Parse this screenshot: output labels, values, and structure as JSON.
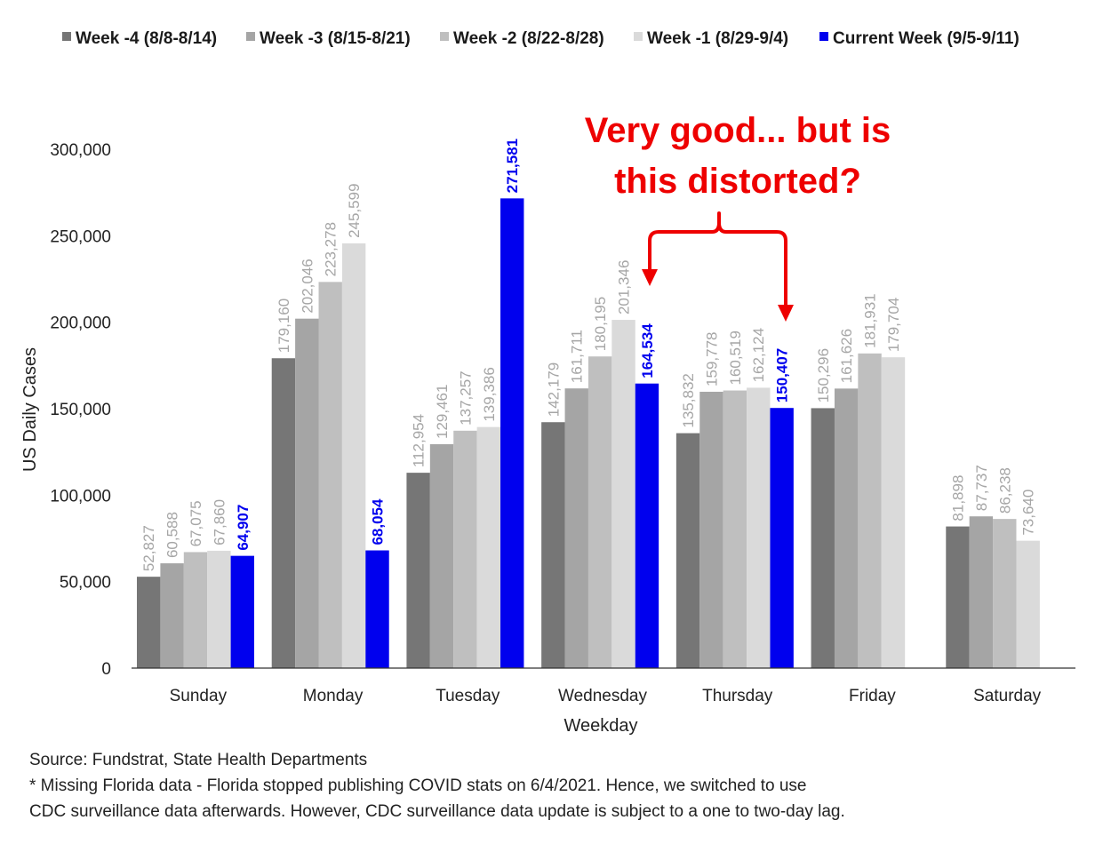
{
  "chart_data": {
    "type": "bar",
    "xlabel": "Weekday",
    "ylabel": "US Daily Cases",
    "ylim": [
      0,
      300000
    ],
    "yticks": [
      0,
      50000,
      100000,
      150000,
      200000,
      250000,
      300000
    ],
    "ytick_labels": [
      "0",
      "50,000",
      "100,000",
      "150,000",
      "200,000",
      "250,000",
      "300,000"
    ],
    "legend_position": "top",
    "categories": [
      "Sunday",
      "Monday",
      "Tuesday",
      "Wednesday",
      "Thursday",
      "Friday",
      "Saturday"
    ],
    "series": [
      {
        "name": "Week -4 (8/8-8/14)",
        "color": "#767676",
        "values": [
          52827,
          179160,
          112954,
          142179,
          135832,
          150296,
          81898
        ],
        "labels": [
          "52,827",
          "179,160",
          "112,954",
          "142,179",
          "135,832",
          "150,296",
          "81,898"
        ]
      },
      {
        "name": "Week -3 (8/15-8/21)",
        "color": "#a5a5a5",
        "values": [
          60588,
          202046,
          129461,
          161711,
          159778,
          161626,
          87737
        ],
        "labels": [
          "60,588",
          "202,046",
          "129,461",
          "161,711",
          "159,778",
          "161,626",
          "87,737"
        ]
      },
      {
        "name": "Week -2 (8/22-8/28)",
        "color": "#bfbfbf",
        "values": [
          67075,
          223278,
          137257,
          180195,
          160519,
          181931,
          86238
        ],
        "labels": [
          "67,075",
          "223,278",
          "137,257",
          "180,195",
          "160,519",
          "181,931",
          "86,238"
        ]
      },
      {
        "name": "Week -1 (8/29-9/4)",
        "color": "#dadada",
        "values": [
          67860,
          245599,
          139386,
          201346,
          162124,
          179704,
          73640
        ],
        "labels": [
          "67,860",
          "245,599",
          "139,386",
          "201,346",
          "162,124",
          "179,704",
          "73,640"
        ]
      },
      {
        "name": "Current Week (9/5-9/11)",
        "color": "#0000ee",
        "values": [
          64907,
          68054,
          271581,
          164534,
          150407,
          null,
          null
        ],
        "labels": [
          "64,907",
          "68,054",
          "271,581",
          "164,534",
          "150,407",
          null,
          null
        ]
      }
    ],
    "annotations": [
      {
        "text_lines": [
          "Very good... but is",
          "this distorted?"
        ],
        "color": "#ee0000"
      }
    ]
  },
  "footnotes": {
    "source": "Source: Fundstrat, State Health Departments",
    "note_line1": "* Missing Florida data -  Florida stopped publishing COVID  stats on 6/4/2021. Hence, we switched to use",
    "note_line2": "CDC surveillance data afterwards. However,  CDC surveillance data update is subject to a one to two-day lag."
  }
}
